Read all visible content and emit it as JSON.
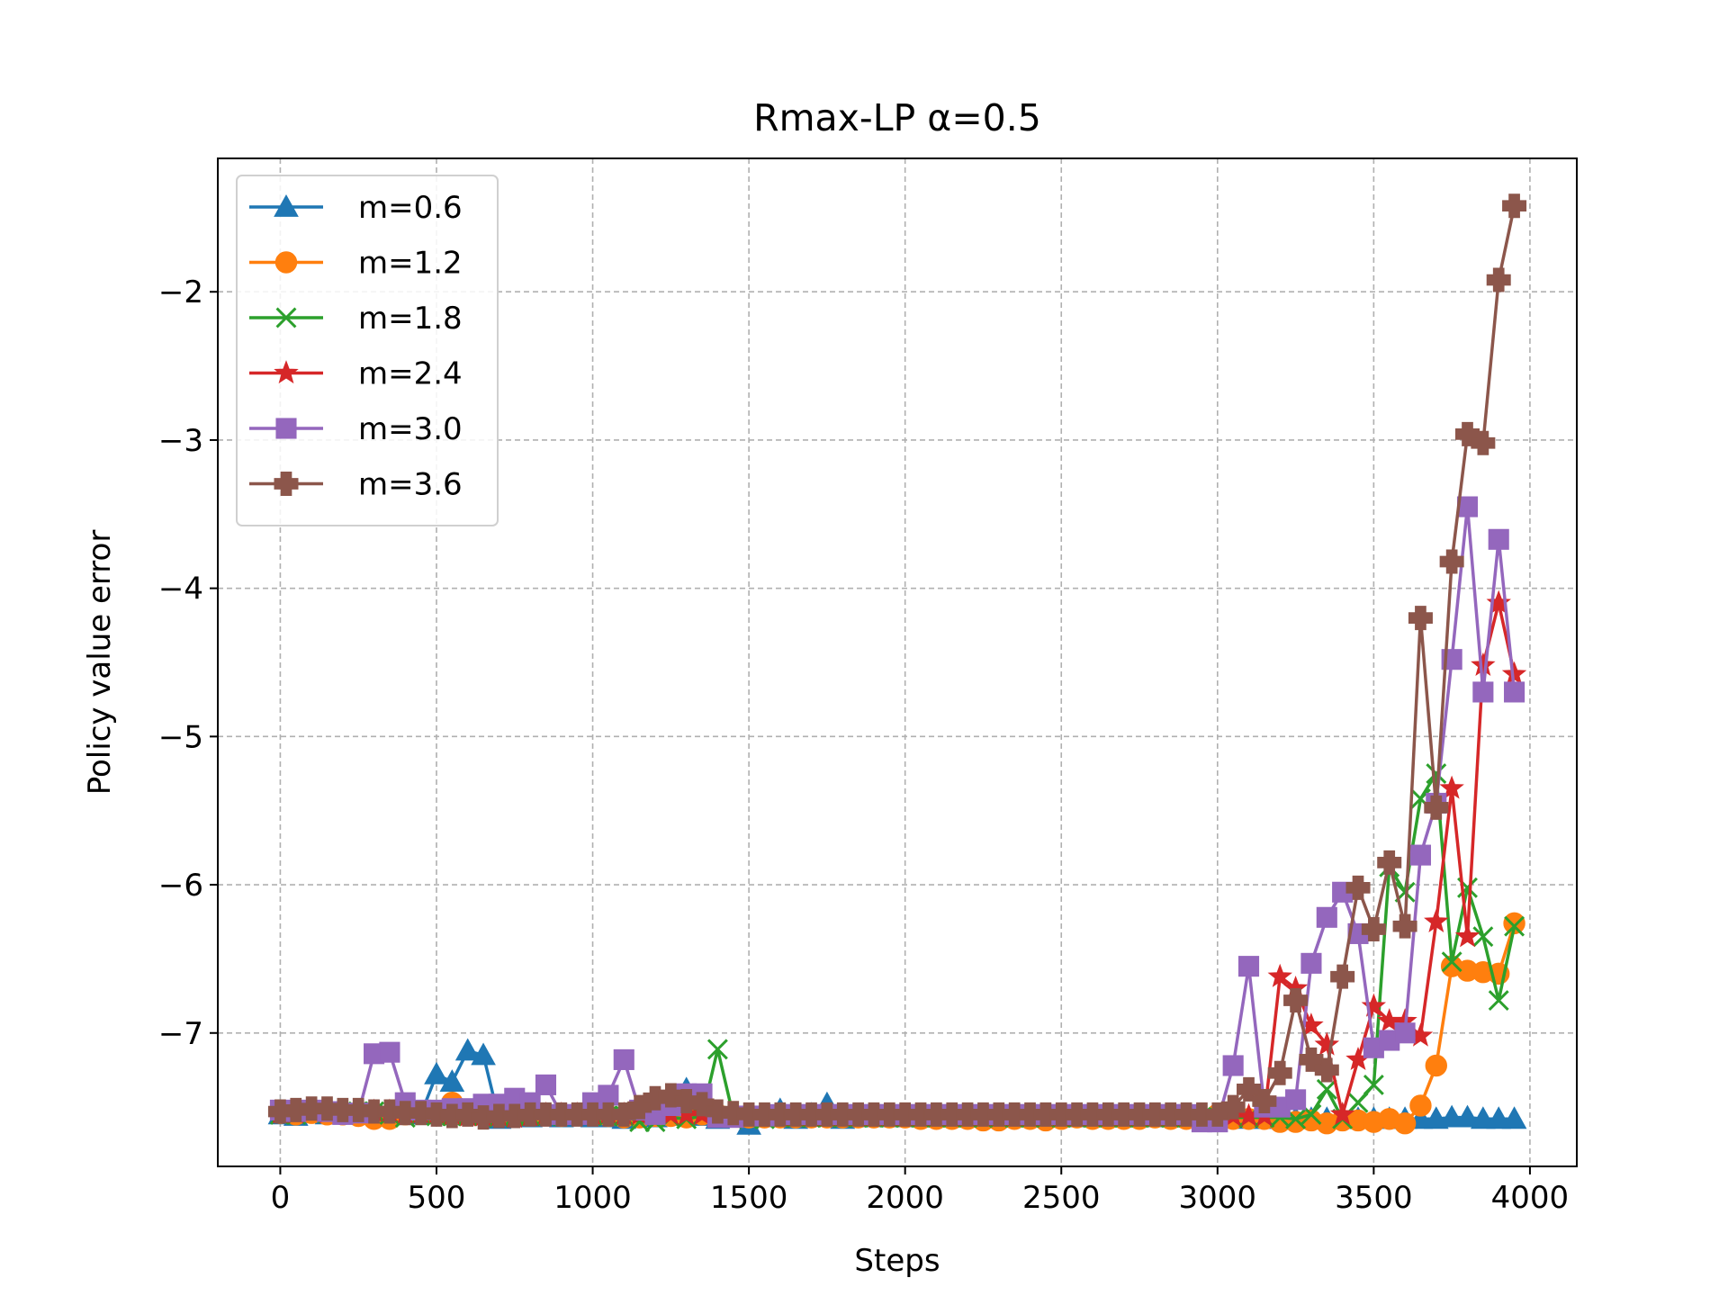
{
  "chart_data": {
    "type": "line",
    "title": "Rmax-LP α=0.5",
    "xlabel": "Steps",
    "ylabel": "Policy value error",
    "xlim": [
      -200,
      4150
    ],
    "ylim": [
      -7.9,
      -1.1
    ],
    "xticks": [
      0,
      500,
      1000,
      1500,
      2000,
      2500,
      3000,
      3500,
      4000
    ],
    "xtick_labels": [
      "0",
      "500",
      "1000",
      "1500",
      "2000",
      "2500",
      "3000",
      "3500",
      "4000"
    ],
    "yticks": [
      -2,
      -3,
      -4,
      -5,
      -6,
      -7
    ],
    "ytick_labels": [
      "−2",
      "−3",
      "−4",
      "−5",
      "−6",
      "−7"
    ],
    "grid": true,
    "legend_position": "top-left",
    "x": [
      0,
      50,
      100,
      150,
      200,
      250,
      300,
      350,
      400,
      450,
      500,
      550,
      600,
      650,
      700,
      750,
      800,
      850,
      900,
      950,
      1000,
      1050,
      1100,
      1150,
      1200,
      1250,
      1300,
      1350,
      1400,
      1450,
      1500,
      1550,
      1600,
      1650,
      1700,
      1750,
      1800,
      1850,
      1900,
      1950,
      2000,
      2050,
      2100,
      2150,
      2200,
      2250,
      2300,
      2350,
      2400,
      2450,
      2500,
      2550,
      2600,
      2650,
      2700,
      2750,
      2800,
      2850,
      2900,
      2950,
      3000,
      3050,
      3100,
      3150,
      3200,
      3250,
      3300,
      3350,
      3400,
      3450,
      3500,
      3550,
      3600,
      3650,
      3700,
      3750,
      3800,
      3850,
      3900,
      3950
    ],
    "series": [
      {
        "name": "m=0.6",
        "color": "#1f77b4",
        "marker": "triangle",
        "values": [
          -7.55,
          -7.56,
          -7.54,
          -7.55,
          -7.55,
          -7.54,
          -7.55,
          -7.55,
          -7.54,
          -7.55,
          -7.28,
          -7.33,
          -7.12,
          -7.15,
          -7.58,
          -7.57,
          -7.57,
          -7.56,
          -7.57,
          -7.56,
          -7.57,
          -7.57,
          -7.58,
          -7.56,
          -7.57,
          -7.56,
          -7.38,
          -7.56,
          -7.58,
          -7.57,
          -7.62,
          -7.57,
          -7.52,
          -7.58,
          -7.55,
          -7.48,
          -7.58,
          -7.57,
          -7.57,
          -7.57,
          -7.57,
          -7.57,
          -7.57,
          -7.57,
          -7.57,
          -7.57,
          -7.57,
          -7.57,
          -7.57,
          -7.57,
          -7.57,
          -7.57,
          -7.57,
          -7.57,
          -7.57,
          -7.57,
          -7.57,
          -7.57,
          -7.57,
          -7.57,
          -7.57,
          -7.57,
          -7.58,
          -7.58,
          -7.58,
          -7.58,
          -7.58,
          -7.58,
          -7.58,
          -7.58,
          -7.58,
          -7.58,
          -7.58,
          -7.58,
          -7.58,
          -7.57,
          -7.57,
          -7.58,
          -7.58,
          -7.58
        ]
      },
      {
        "name": "m=1.2",
        "color": "#ff7f0e",
        "marker": "circle",
        "values": [
          -7.54,
          -7.55,
          -7.54,
          -7.55,
          -7.55,
          -7.56,
          -7.58,
          -7.58,
          -7.55,
          -7.54,
          -7.55,
          -7.47,
          -7.55,
          -7.55,
          -7.55,
          -7.55,
          -7.55,
          -7.55,
          -7.56,
          -7.55,
          -7.55,
          -7.56,
          -7.57,
          -7.57,
          -7.56,
          -7.56,
          -7.57,
          -7.55,
          -7.55,
          -7.56,
          -7.57,
          -7.57,
          -7.57,
          -7.57,
          -7.57,
          -7.57,
          -7.57,
          -7.57,
          -7.57,
          -7.57,
          -7.57,
          -7.58,
          -7.58,
          -7.58,
          -7.58,
          -7.59,
          -7.59,
          -7.58,
          -7.58,
          -7.59,
          -7.58,
          -7.57,
          -7.58,
          -7.58,
          -7.58,
          -7.58,
          -7.57,
          -7.58,
          -7.58,
          -7.58,
          -7.55,
          -7.58,
          -7.58,
          -7.58,
          -7.6,
          -7.6,
          -7.59,
          -7.61,
          -7.59,
          -7.59,
          -7.6,
          -7.58,
          -7.61,
          -7.49,
          -7.22,
          -6.55,
          -6.58,
          -6.59,
          -6.6,
          -6.26
        ]
      },
      {
        "name": "m=1.8",
        "color": "#2ca02c",
        "marker": "x",
        "values": [
          -7.55,
          -7.55,
          -7.54,
          -7.54,
          -7.54,
          -7.53,
          -7.53,
          -7.55,
          -7.57,
          -7.55,
          -7.56,
          -7.56,
          -7.56,
          -7.56,
          -7.57,
          -7.56,
          -7.56,
          -7.56,
          -7.55,
          -7.55,
          -7.55,
          -7.56,
          -7.56,
          -7.6,
          -7.6,
          -7.57,
          -7.58,
          -7.56,
          -7.11,
          -7.56,
          -7.58,
          -7.58,
          -7.57,
          -7.57,
          -7.57,
          -7.57,
          -7.57,
          -7.57,
          -7.57,
          -7.57,
          -7.57,
          -7.57,
          -7.57,
          -7.57,
          -7.57,
          -7.57,
          -7.57,
          -7.57,
          -7.57,
          -7.57,
          -7.57,
          -7.57,
          -7.57,
          -7.57,
          -7.57,
          -7.57,
          -7.57,
          -7.57,
          -7.57,
          -7.57,
          -7.57,
          -7.57,
          -7.57,
          -7.57,
          -7.57,
          -7.58,
          -7.55,
          -7.38,
          -7.58,
          -7.47,
          -7.35,
          -5.88,
          -6.05,
          -5.42,
          -5.25,
          -6.52,
          -6.02,
          -6.35,
          -6.78,
          -6.28
        ]
      },
      {
        "name": "m=2.4",
        "color": "#d62728",
        "marker": "star",
        "values": [
          -7.54,
          -7.54,
          -7.53,
          -7.54,
          -7.54,
          -7.53,
          -7.53,
          -7.53,
          -7.54,
          -7.54,
          -7.54,
          -7.55,
          -7.56,
          -7.56,
          -7.56,
          -7.57,
          -7.56,
          -7.55,
          -7.55,
          -7.55,
          -7.55,
          -7.54,
          -7.55,
          -7.55,
          -7.55,
          -7.55,
          -7.55,
          -7.55,
          -7.56,
          -7.56,
          -7.56,
          -7.56,
          -7.56,
          -7.56,
          -7.56,
          -7.56,
          -7.56,
          -7.56,
          -7.56,
          -7.56,
          -7.56,
          -7.56,
          -7.56,
          -7.56,
          -7.56,
          -7.56,
          -7.56,
          -7.56,
          -7.56,
          -7.56,
          -7.56,
          -7.56,
          -7.56,
          -7.56,
          -7.56,
          -7.56,
          -7.56,
          -7.56,
          -7.56,
          -7.56,
          -7.56,
          -7.56,
          -7.56,
          -7.56,
          -6.62,
          -6.7,
          -6.95,
          -7.08,
          -7.55,
          -7.18,
          -6.82,
          -6.92,
          -6.92,
          -7.02,
          -6.25,
          -5.35,
          -6.35,
          -4.52,
          -4.1,
          -4.58
        ]
      },
      {
        "name": "m=3.0",
        "color": "#9467bd",
        "marker": "square",
        "values": [
          -7.52,
          -7.53,
          -7.52,
          -7.53,
          -7.55,
          -7.54,
          -7.14,
          -7.13,
          -7.47,
          -7.52,
          -7.52,
          -7.51,
          -7.51,
          -7.48,
          -7.48,
          -7.44,
          -7.47,
          -7.35,
          -7.55,
          -7.55,
          -7.47,
          -7.42,
          -7.18,
          -7.52,
          -7.55,
          -7.49,
          -7.41,
          -7.41,
          -7.57,
          -7.57,
          -7.56,
          -7.56,
          -7.55,
          -7.55,
          -7.55,
          -7.55,
          -7.55,
          -7.55,
          -7.55,
          -7.55,
          -7.55,
          -7.55,
          -7.55,
          -7.55,
          -7.55,
          -7.55,
          -7.55,
          -7.55,
          -7.55,
          -7.55,
          -7.55,
          -7.55,
          -7.55,
          -7.55,
          -7.55,
          -7.55,
          -7.55,
          -7.55,
          -7.55,
          -7.6,
          -7.6,
          -7.22,
          -6.55,
          -7.5,
          -7.5,
          -7.45,
          -6.53,
          -6.22,
          -6.05,
          -6.33,
          -7.1,
          -7.05,
          -7.0,
          -5.8,
          -5.45,
          -4.48,
          -3.45,
          -4.7,
          -3.67,
          -4.7
        ]
      },
      {
        "name": "m=3.6",
        "color": "#8c564b",
        "marker": "plus",
        "values": [
          -7.53,
          -7.52,
          -7.51,
          -7.51,
          -7.52,
          -7.52,
          -7.53,
          -7.53,
          -7.54,
          -7.54,
          -7.55,
          -7.56,
          -7.55,
          -7.57,
          -7.56,
          -7.56,
          -7.55,
          -7.55,
          -7.55,
          -7.55,
          -7.55,
          -7.55,
          -7.55,
          -7.5,
          -7.44,
          -7.42,
          -7.46,
          -7.48,
          -7.53,
          -7.54,
          -7.55,
          -7.55,
          -7.55,
          -7.55,
          -7.55,
          -7.55,
          -7.55,
          -7.55,
          -7.55,
          -7.55,
          -7.55,
          -7.55,
          -7.55,
          -7.55,
          -7.55,
          -7.55,
          -7.55,
          -7.55,
          -7.55,
          -7.55,
          -7.55,
          -7.55,
          -7.55,
          -7.55,
          -7.55,
          -7.55,
          -7.55,
          -7.55,
          -7.55,
          -7.55,
          -7.55,
          -7.5,
          -7.38,
          -7.46,
          -7.27,
          -6.78,
          -7.18,
          -7.25,
          -6.62,
          -6.02,
          -6.3,
          -5.85,
          -6.28,
          -4.2,
          -5.48,
          -3.82,
          -2.96,
          -3.02,
          -1.92,
          -1.42
        ]
      }
    ]
  }
}
